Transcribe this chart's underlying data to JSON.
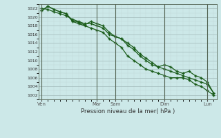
{
  "background_color": "#cce8e8",
  "grid_minor_color": "#c0d8d8",
  "grid_major_color": "#a0b8b8",
  "line_color": "#1a5c1a",
  "title": "Pression niveau de la mer( hPa )",
  "ylabel_values": [
    1002,
    1004,
    1006,
    1008,
    1010,
    1012,
    1014,
    1016,
    1018,
    1020,
    1022
  ],
  "ylim": [
    1001,
    1023
  ],
  "xtick_labels": [
    "Ven",
    "Mar",
    "Sam",
    "Dim",
    "Lun"
  ],
  "xtick_positions": [
    0,
    9,
    12,
    20,
    27
  ],
  "total_points": 29,
  "line1": [
    1022,
    1021.8,
    1021.2,
    1020.8,
    1020.3,
    1019.5,
    1019,
    1018.5,
    1018.5,
    1018,
    1017.5,
    1016,
    1015.5,
    1015,
    1013.5,
    1012.5,
    1011,
    1010,
    1009,
    1008.5,
    1008,
    1007.5,
    1007,
    1006.5,
    1006,
    1005.5,
    1005,
    1004.5,
    1002.5
  ],
  "line2": [
    1021.5,
    1022.5,
    1021.8,
    1021.2,
    1020.8,
    1019.2,
    1018.8,
    1018.2,
    1019,
    1018.5,
    1018,
    1016.5,
    1015.5,
    1015,
    1014,
    1013,
    1011.5,
    1010.5,
    1009.5,
    1008.5,
    1009,
    1008.5,
    1007.5,
    1007,
    1007.5,
    1006.5,
    1006,
    1005,
    1002.5
  ],
  "line3": [
    1021.5,
    1022.5,
    1021.8,
    1021.2,
    1020.8,
    1019,
    1018.5,
    1018,
    1017.5,
    1017,
    1016.5,
    1015,
    1014,
    1013,
    1011,
    1010,
    1009,
    1008,
    1007.5,
    1007,
    1006.5,
    1006,
    1006,
    1006,
    1005.5,
    1004.5,
    1004,
    1003,
    1002
  ]
}
